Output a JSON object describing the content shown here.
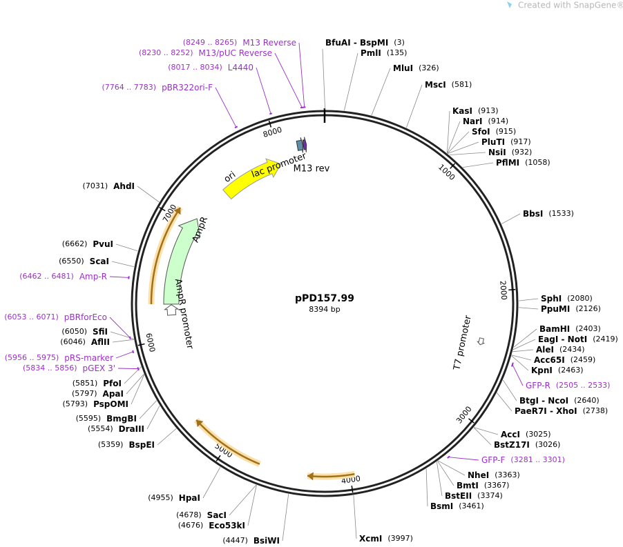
{
  "watermark": "Created with SnapGene®",
  "plasmid": {
    "name": "pPD157.99",
    "length": {
      "value": 8394,
      "label": "8394 bp"
    }
  },
  "ticks": [
    1000,
    2000,
    3000,
    4000,
    5000,
    6000,
    7000,
    8000
  ],
  "sites": [
    {
      "name": "BfuAI - BspMI",
      "position": {
        "value": 3,
        "label": "(3)"
      }
    },
    {
      "name": "PmlI",
      "position": {
        "value": 135,
        "label": "(135)"
      }
    },
    {
      "name": "MluI",
      "position": {
        "value": 326,
        "label": "(326)"
      }
    },
    {
      "name": "MscI",
      "position": {
        "value": 581,
        "label": "(581)"
      }
    },
    {
      "name": "KasI",
      "position": {
        "value": 913,
        "label": "(913)"
      }
    },
    {
      "name": "NarI",
      "position": {
        "value": 914,
        "label": "(914)"
      }
    },
    {
      "name": "SfoI",
      "position": {
        "value": 915,
        "label": "(915)"
      }
    },
    {
      "name": "PluTI",
      "position": {
        "value": 917,
        "label": "(917)"
      }
    },
    {
      "name": "NsiI",
      "position": {
        "value": 932,
        "label": "(932)"
      }
    },
    {
      "name": "PflMI",
      "position": {
        "value": 1058,
        "label": "(1058)"
      }
    },
    {
      "name": "BbsI",
      "position": {
        "value": 1533,
        "label": "(1533)"
      }
    },
    {
      "name": "SphI",
      "position": {
        "value": 2080,
        "label": "(2080)"
      }
    },
    {
      "name": "PpuMI",
      "position": {
        "value": 2126,
        "label": "(2126)"
      }
    },
    {
      "name": "BamHI",
      "position": {
        "value": 2403,
        "label": "(2403)"
      }
    },
    {
      "name": "EagI - NotI",
      "position": {
        "value": 2419,
        "label": "(2419)"
      }
    },
    {
      "name": "AleI",
      "position": {
        "value": 2434,
        "label": "(2434)"
      }
    },
    {
      "name": "Acc65I",
      "position": {
        "value": 2459,
        "label": "(2459)"
      }
    },
    {
      "name": "KpnI",
      "position": {
        "value": 2463,
        "label": "(2463)"
      }
    },
    {
      "name": "BtgI - NcoI",
      "position": {
        "value": 2640,
        "label": "(2640)"
      }
    },
    {
      "name": "PaeR7I - XhoI",
      "position": {
        "value": 2738,
        "label": "(2738)"
      }
    },
    {
      "name": "AccI",
      "position": {
        "value": 3025,
        "label": "(3025)"
      }
    },
    {
      "name": "BstZ17I",
      "position": {
        "value": 3026,
        "label": "(3026)"
      }
    },
    {
      "name": "NheI",
      "position": {
        "value": 3363,
        "label": "(3363)"
      }
    },
    {
      "name": "BmtI",
      "position": {
        "value": 3367,
        "label": "(3367)"
      }
    },
    {
      "name": "BstEII",
      "position": {
        "value": 3374,
        "label": "(3374)"
      }
    },
    {
      "name": "BsmI",
      "position": {
        "value": 3461,
        "label": "(3461)"
      }
    },
    {
      "name": "XcmI",
      "position": {
        "value": 3997,
        "label": "(3997)"
      }
    },
    {
      "name": "BsiWI",
      "position": {
        "value": 4447,
        "label": "(4447)"
      }
    },
    {
      "name": "Eco53kI",
      "position": {
        "value": 4676,
        "label": "(4676)"
      }
    },
    {
      "name": "SacI",
      "position": {
        "value": 4678,
        "label": "(4678)"
      }
    },
    {
      "name": "HpaI",
      "position": {
        "value": 4955,
        "label": "(4955)"
      }
    },
    {
      "name": "BspEI",
      "position": {
        "value": 5359,
        "label": "(5359)"
      }
    },
    {
      "name": "DraIII",
      "position": {
        "value": 5554,
        "label": "(5554)"
      }
    },
    {
      "name": "BmgBI",
      "position": {
        "value": 5595,
        "label": "(5595)"
      }
    },
    {
      "name": "PspOMI",
      "position": {
        "value": 5793,
        "label": "(5793)"
      }
    },
    {
      "name": "ApaI",
      "position": {
        "value": 5797,
        "label": "(5797)"
      }
    },
    {
      "name": "PfoI",
      "position": {
        "value": 5851,
        "label": "(5851)"
      }
    },
    {
      "name": "AflII",
      "position": {
        "value": 6046,
        "label": "(6046)"
      }
    },
    {
      "name": "SfiI",
      "position": {
        "value": 6050,
        "label": "(6050)"
      }
    },
    {
      "name": "ScaI",
      "position": {
        "value": 6550,
        "label": "(6550)"
      }
    },
    {
      "name": "PvuI",
      "position": {
        "value": 6662,
        "label": "(6662)"
      }
    },
    {
      "name": "AhdI",
      "position": {
        "value": 7031,
        "label": "(7031)"
      }
    }
  ],
  "primers": [
    {
      "name": "M13 Reverse",
      "range": {
        "value": [
          8249,
          8265
        ],
        "label": "(8249 .. 8265)"
      }
    },
    {
      "name": "M13/pUC Reverse",
      "range": {
        "value": [
          8230,
          8252
        ],
        "label": "(8230 .. 8252)"
      }
    },
    {
      "name": "L4440",
      "range": {
        "value": [
          8017,
          8034
        ],
        "label": "(8017 .. 8034)"
      }
    },
    {
      "name": "pBR322ori-F",
      "range": {
        "value": [
          7764,
          7783
        ],
        "label": "(7764 .. 7783)"
      }
    },
    {
      "name": "Amp-R",
      "range": {
        "value": [
          6462,
          6481
        ],
        "label": "(6462 .. 6481)"
      }
    },
    {
      "name": "pBRforEco",
      "range": {
        "value": [
          6053,
          6071
        ],
        "label": "(6053 .. 6071)"
      }
    },
    {
      "name": "pRS-marker",
      "range": {
        "value": [
          5956,
          5975
        ],
        "label": "(5956 .. 5975)"
      }
    },
    {
      "name": "pGEX 3'",
      "range": {
        "value": [
          5834,
          5856
        ],
        "label": "(5834 .. 5856)"
      }
    },
    {
      "name": "GFP-R",
      "range": {
        "value": [
          2505,
          2533
        ],
        "label": "(2505 .. 2533)"
      }
    },
    {
      "name": "GFP-F",
      "range": {
        "value": [
          3281,
          3301
        ],
        "label": "(3281 .. 3301)"
      }
    }
  ],
  "features": [
    "ori",
    "AmpR",
    "AmpR promoter",
    "lac promoter",
    "M13 rev",
    "T7 promoter"
  ]
}
